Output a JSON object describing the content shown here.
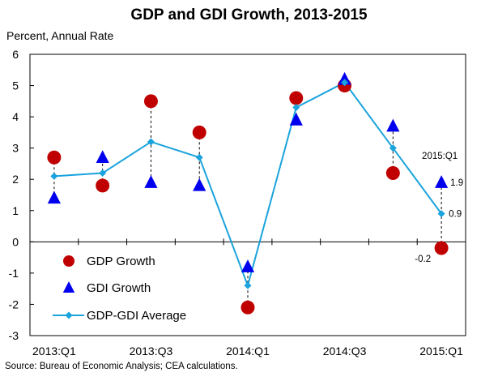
{
  "chart_data": {
    "type": "scatter",
    "title": "GDP and GDI Growth, 2013-2015",
    "ylabel": "Percent, Annual Rate",
    "source": "Source: Bureau of Economic Analysis; CEA calculations.",
    "ylim": [
      -3,
      6
    ],
    "yticks": [
      "6",
      "5",
      "4",
      "3",
      "2",
      "1",
      "0",
      "-1",
      "-2",
      "-3"
    ],
    "categories": [
      "2013:Q1",
      "2013:Q2",
      "2013:Q3",
      "2013:Q4",
      "2014:Q1",
      "2014:Q2",
      "2014:Q3",
      "2014:Q4",
      "2015:Q1"
    ],
    "xtick_labels": [
      "2013:Q1",
      "",
      "2013:Q3",
      "",
      "2014:Q1",
      "",
      "2014:Q3",
      "",
      "2015:Q1"
    ],
    "grid": false,
    "legend_position": "bottom-left",
    "series": [
      {
        "name": "GDP Growth",
        "type": "scatter",
        "marker": "circle",
        "color": "#c00000",
        "values": [
          2.7,
          1.8,
          4.5,
          3.5,
          -2.1,
          4.6,
          5.0,
          2.2,
          -0.2
        ]
      },
      {
        "name": "GDI Growth",
        "type": "scatter",
        "marker": "triangle",
        "color": "#0000ee",
        "values": [
          1.4,
          2.7,
          1.9,
          1.8,
          -0.8,
          3.9,
          5.2,
          3.7,
          1.9
        ]
      },
      {
        "name": "GDP-GDI Average",
        "type": "line",
        "marker": "diamond",
        "color": "#1aa3dc",
        "values": [
          2.1,
          2.2,
          3.2,
          2.7,
          -1.4,
          4.3,
          5.1,
          3.0,
          0.9
        ]
      }
    ],
    "annotations": [
      {
        "text": "2015:Q1",
        "category": "2015:Q1",
        "value": 2.5
      },
      {
        "text": "1.9",
        "category": "2015:Q1",
        "value": 1.9
      },
      {
        "text": "0.9",
        "category": "2015:Q1",
        "value": 0.9
      },
      {
        "text": "-0.2",
        "category": "2015:Q1",
        "value": -0.2
      }
    ]
  }
}
